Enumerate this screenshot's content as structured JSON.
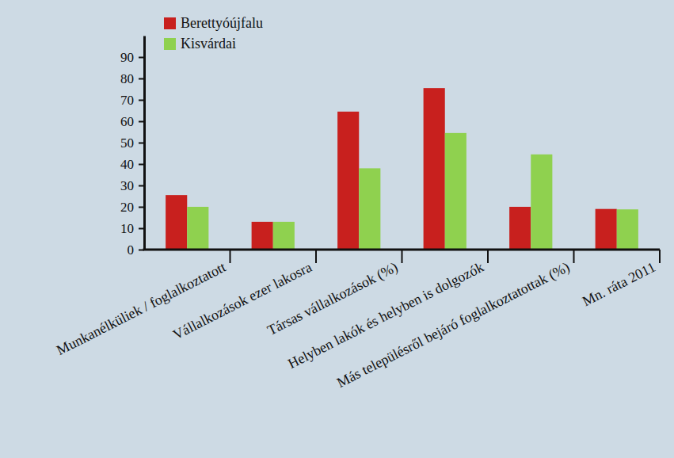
{
  "chart_data": {
    "type": "bar",
    "categories": [
      "Munkanélküliek / foglalkoztatott",
      "Vállalkozások ezer lakosra",
      "Társas vállalkozások (%)",
      "Helyben lakók és helyben is dolgozók",
      "Más településről bejáró foglalkoztatottak (%)",
      "Mn. ráta 2011"
    ],
    "series": [
      {
        "name": "Berettyóújfalu",
        "color": "#c8201e",
        "values": [
          25.5,
          13,
          64.5,
          75.5,
          20,
          19
        ]
      },
      {
        "name": "Kisvárdai",
        "color": "#8fd14f",
        "values": [
          20,
          13,
          38,
          54.5,
          44.5,
          18.8
        ]
      }
    ],
    "ylim": [
      0,
      100
    ],
    "yticks": [
      0,
      10,
      20,
      30,
      40,
      50,
      60,
      70,
      80,
      90
    ],
    "grid": false,
    "legend": "top-left"
  }
}
